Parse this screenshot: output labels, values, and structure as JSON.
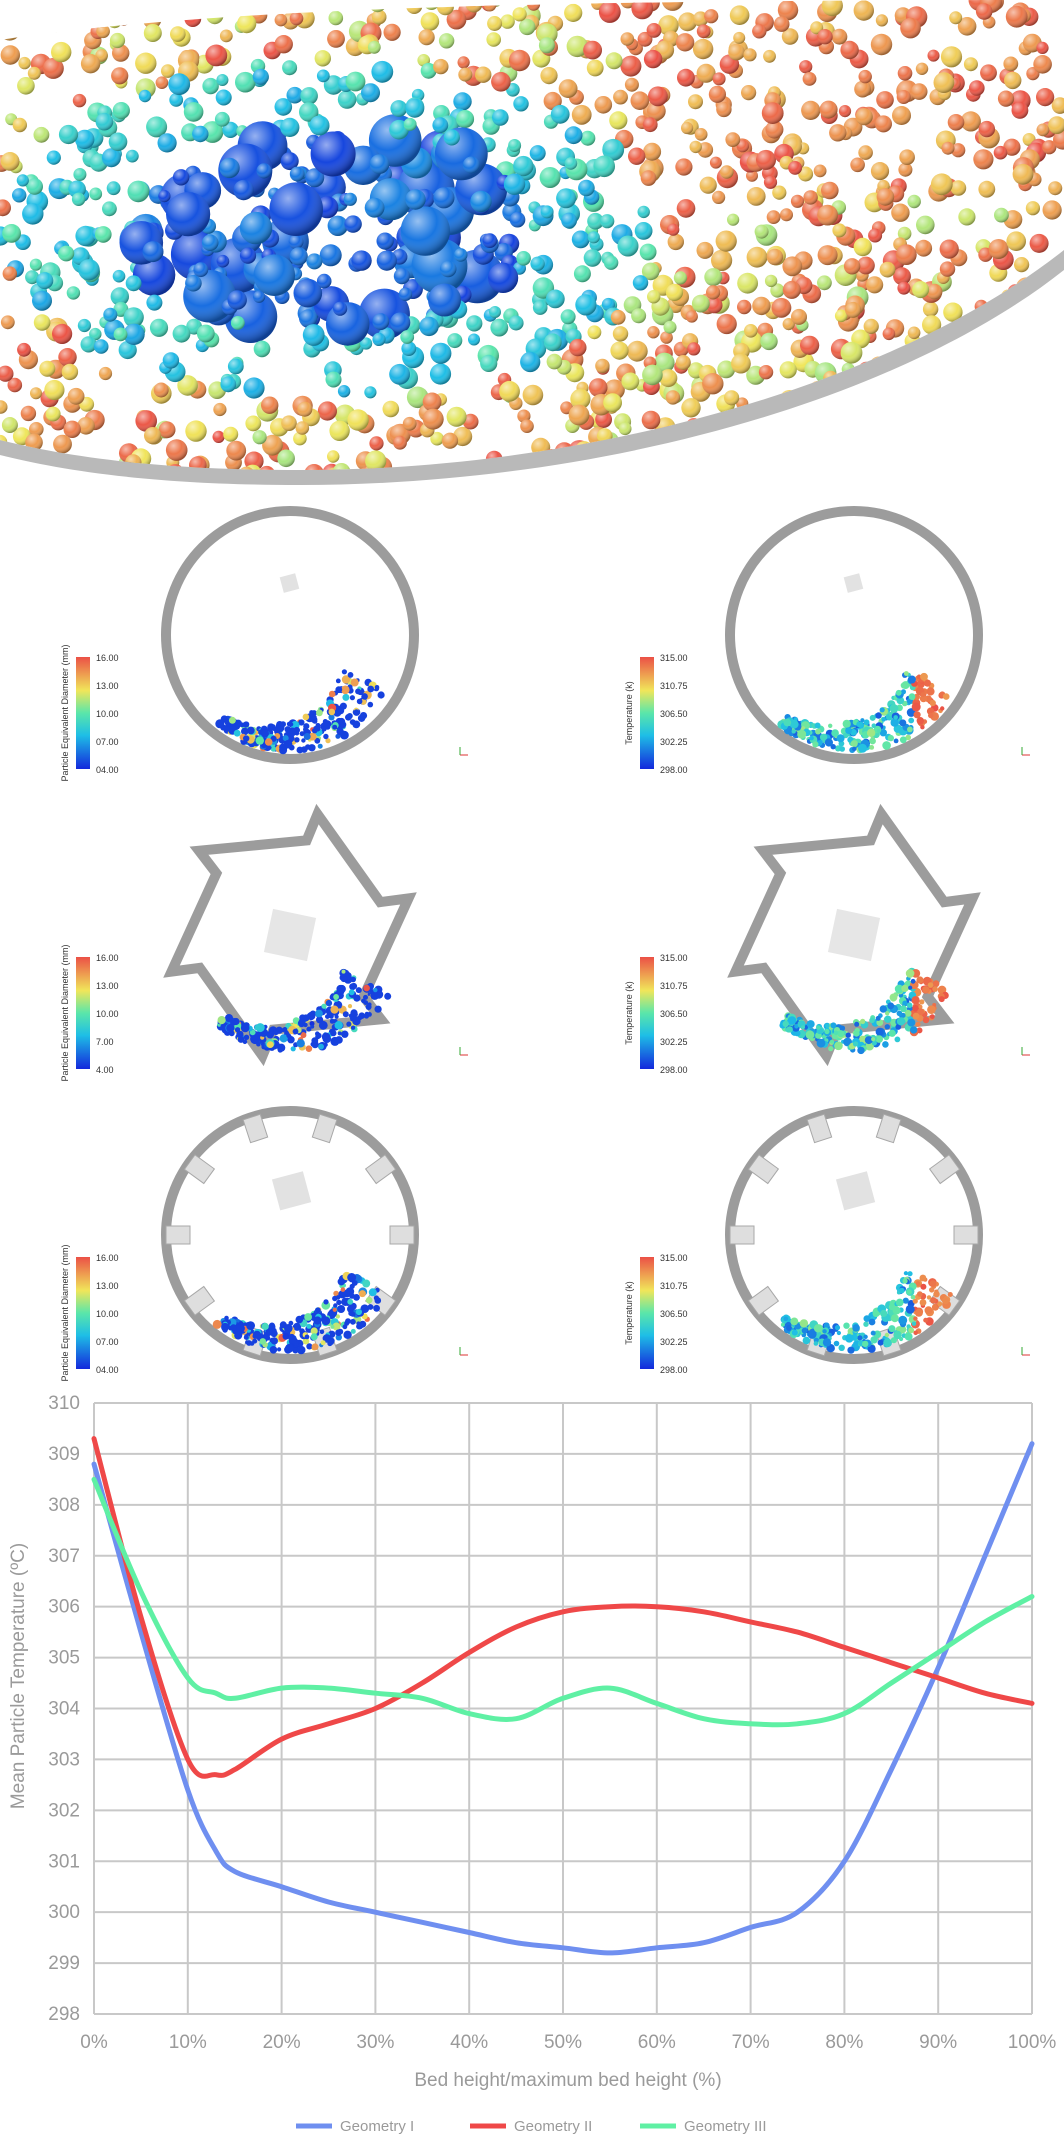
{
  "colors": {
    "geometry1": "#6f8ff0",
    "geometry2": "#ef4848",
    "geometry3": "#5ff0a4",
    "grid": "#c8c8c8",
    "drum": "#9c9c9c"
  },
  "panels": [
    {
      "drum": "plain",
      "legend": {
        "title": "Particle Equivalent Diameter (mm)",
        "ticks": [
          "16.00",
          "13.00",
          "10.00",
          "07.00",
          "04.00"
        ]
      }
    },
    {
      "drum": "plain",
      "legend": {
        "title": "Temperature (k)",
        "ticks": [
          "315.00",
          "310.75",
          "306.50",
          "302.25",
          "298.00"
        ]
      }
    },
    {
      "drum": "notched",
      "legend": {
        "title": "Particle Equivalent Diameter (mm)",
        "ticks": [
          "16.00",
          "13.00",
          "10.00",
          "7.00",
          "4.00"
        ]
      }
    },
    {
      "drum": "notched",
      "legend": {
        "title": "Temperature (k)",
        "ticks": [
          "315.00",
          "310.75",
          "306.50",
          "302.25",
          "298.00"
        ]
      }
    },
    {
      "drum": "lifters",
      "legend": {
        "title": "Particle Equivalent Diameter (mm)",
        "ticks": [
          "16.00",
          "13.00",
          "10.00",
          "07.00",
          "04.00"
        ]
      }
    },
    {
      "drum": "lifters",
      "legend": {
        "title": "Temperature (k)",
        "ticks": [
          "315.00",
          "310.75",
          "306.50",
          "302.25",
          "298.00"
        ]
      }
    }
  ],
  "chart_data": {
    "type": "line",
    "title": "",
    "xlabel": "Bed height/maximum bed height (%)",
    "ylabel": "Mean Particle Temperature (ºC)",
    "xlim": [
      0,
      100
    ],
    "ylim": [
      298,
      310
    ],
    "x_ticks": [
      "0%",
      "10%",
      "20%",
      "30%",
      "40%",
      "50%",
      "60%",
      "70%",
      "80%",
      "90%",
      "100%"
    ],
    "y_ticks": [
      "298",
      "299",
      "300",
      "301",
      "302",
      "303",
      "304",
      "305",
      "306",
      "307",
      "308",
      "309",
      "310"
    ],
    "grid": true,
    "legend_position": "bottom",
    "x": [
      0,
      5,
      10,
      13,
      15,
      20,
      25,
      30,
      35,
      40,
      45,
      50,
      55,
      60,
      65,
      70,
      75,
      80,
      85,
      90,
      95,
      100
    ],
    "series": [
      {
        "name": "Geometry I",
        "values": [
          308.8,
          305.5,
          302.4,
          301.2,
          300.8,
          300.5,
          300.2,
          300.0,
          299.8,
          299.6,
          299.4,
          299.3,
          299.2,
          299.3,
          299.4,
          299.7,
          300.0,
          301.0,
          302.8,
          304.8,
          307.0,
          309.2
        ]
      },
      {
        "name": "Geometry II",
        "values": [
          309.3,
          305.8,
          303.0,
          302.7,
          302.8,
          303.4,
          303.7,
          304.0,
          304.5,
          305.1,
          305.6,
          305.9,
          306.0,
          306.0,
          305.9,
          305.7,
          305.5,
          305.2,
          304.9,
          304.6,
          304.3,
          304.1
        ]
      },
      {
        "name": "Geometry III",
        "values": [
          308.5,
          306.3,
          304.6,
          304.3,
          304.2,
          304.4,
          304.4,
          304.3,
          304.2,
          303.9,
          303.8,
          304.2,
          304.4,
          304.1,
          303.8,
          303.7,
          303.7,
          303.9,
          304.5,
          305.1,
          305.7,
          306.2
        ]
      }
    ]
  }
}
